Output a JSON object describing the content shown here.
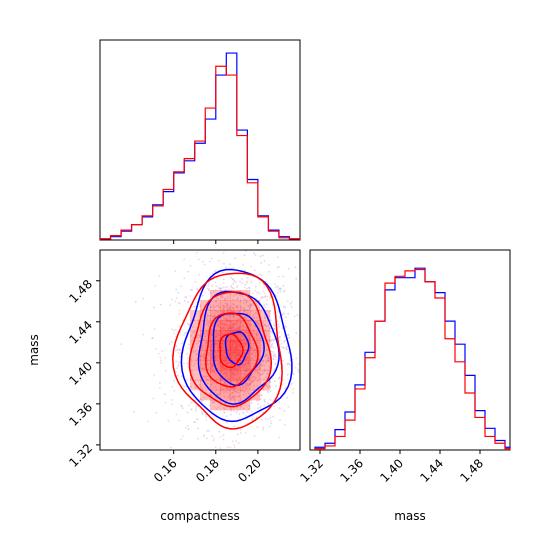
{
  "chart_data": [
    {
      "type": "histogram",
      "panel": "compactness-marginal",
      "bins": [
        0.125,
        0.13,
        0.135,
        0.14,
        0.145,
        0.15,
        0.155,
        0.16,
        0.165,
        0.17,
        0.175,
        0.18,
        0.185,
        0.19,
        0.195,
        0.2,
        0.205,
        0.21,
        0.215,
        0.22
      ],
      "series": [
        {
          "color": "#0000ff",
          "values": [
            1,
            3,
            8,
            14,
            21,
            32,
            44,
            61,
            72,
            88,
            110,
            150,
            170,
            100,
            55,
            22,
            9,
            3,
            1
          ]
        },
        {
          "color": "#ff0000",
          "values": [
            1,
            4,
            9,
            14,
            22,
            31,
            46,
            62,
            74,
            90,
            120,
            158,
            150,
            95,
            52,
            21,
            8,
            2,
            1
          ]
        }
      ],
      "xlim": [
        0.125,
        0.22
      ],
      "xticks": [
        0.16,
        0.18,
        0.2
      ],
      "yticks_shown": false
    },
    {
      "type": "contour",
      "panel": "compactness-vs-mass",
      "xlabel": "compactness",
      "ylabel": "mass",
      "xlim": [
        0.125,
        0.22
      ],
      "ylim": [
        1.315,
        1.51
      ],
      "xtick_labels": [
        "0.16",
        "0.18",
        "0.20"
      ],
      "xticks": [
        0.16,
        0.18,
        0.2
      ],
      "ytick_labels": [
        "1.32",
        "1.36",
        "1.40",
        "1.44",
        "1.48"
      ],
      "yticks": [
        1.32,
        1.36,
        1.4,
        1.44,
        1.48
      ],
      "series": [
        {
          "color": "#0000ff",
          "center": [
            0.19,
            1.415
          ],
          "sigma": [
            0.012,
            0.035
          ]
        },
        {
          "color": "#ff0000",
          "center": [
            0.187,
            1.412
          ],
          "sigma": [
            0.012,
            0.036
          ]
        }
      ]
    },
    {
      "type": "histogram",
      "panel": "mass-marginal",
      "xlabel": "mass",
      "bins": [
        1.315,
        1.325,
        1.335,
        1.345,
        1.355,
        1.365,
        1.375,
        1.385,
        1.395,
        1.405,
        1.415,
        1.425,
        1.435,
        1.445,
        1.455,
        1.465,
        1.475,
        1.485,
        1.495,
        1.505,
        1.51
      ],
      "series": [
        {
          "color": "#0000ff",
          "values": [
            2,
            5,
            15,
            28,
            48,
            72,
            95,
            118,
            127,
            127,
            134,
            124,
            116,
            95,
            78,
            55,
            29,
            16,
            7,
            2
          ]
        },
        {
          "color": "#ff0000",
          "values": [
            1,
            3,
            10,
            22,
            45,
            68,
            95,
            123,
            128,
            132,
            133,
            124,
            112,
            82,
            65,
            42,
            24,
            10,
            5,
            1
          ]
        }
      ],
      "xlim": [
        1.31,
        1.51
      ],
      "xtick_labels": [
        "1.32",
        "1.36",
        "1.40",
        "1.44",
        "1.48"
      ],
      "xticks": [
        1.32,
        1.36,
        1.4,
        1.44,
        1.48
      ],
      "yticks_shown": false
    }
  ]
}
